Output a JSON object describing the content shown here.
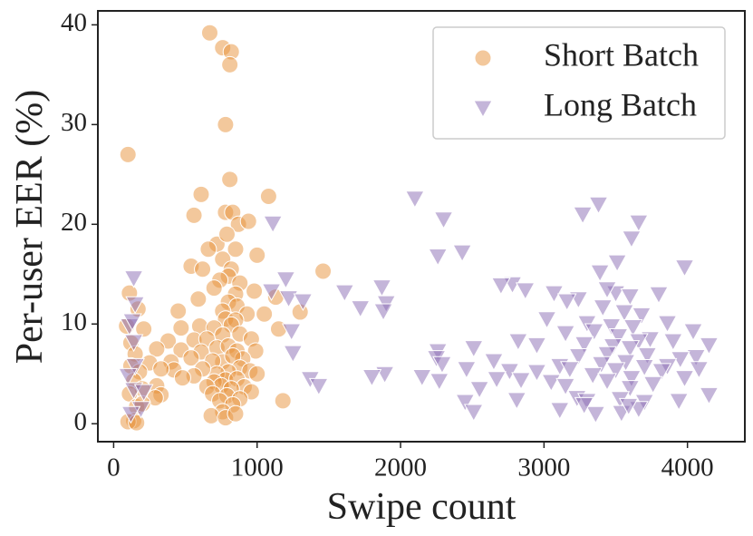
{
  "chart_data": {
    "type": "scatter",
    "x_label": "Swipe count",
    "y_label": "Per-user EER (%)",
    "xlim": [
      -110,
      4400
    ],
    "ylim": [
      -1.8,
      41.4
    ],
    "xticks": [
      0,
      1000,
      2000,
      3000,
      4000
    ],
    "yticks": [
      0,
      10,
      20,
      30,
      40
    ],
    "grid": false,
    "legend": "upper right",
    "series": [
      {
        "name": "Short Batch",
        "color": "#e8923a",
        "marker": "circle",
        "x": [
          100,
          670,
          760,
          820,
          810,
          780,
          810,
          610,
          1080,
          560,
          780,
          830,
          870,
          940,
          720,
          790,
          850,
          660,
          1000,
          760,
          820,
          540,
          620,
          1460,
          800,
          880,
          740,
          590,
          700,
          850,
          980,
          1130,
          110,
          800,
          860,
          760,
          1050,
          1300,
          450,
          170,
          930,
          780,
          850,
          600,
          700,
          820,
          1150,
          470,
          90,
          210,
          760,
          880,
          560,
          650,
          960,
          380,
          120,
          990,
          720,
          800,
          860,
          470,
          610,
          300,
          150,
          900,
          760,
          830,
          540,
          690,
          400,
          250,
          120,
          880,
          800,
          720,
          950,
          620,
          420,
          330,
          180,
          1000,
          780,
          860,
          700,
          560,
          480,
          140,
          910,
          750,
          820,
          650,
          300,
          200,
          960,
          690,
          790,
          330,
          110,
          880,
          740,
          290,
          1180,
          830,
          160,
          760,
          680,
          780,
          850,
          140,
          100,
          160,
          200
        ],
        "values": [
          27,
          39.2,
          37.7,
          37.3,
          36,
          30,
          24.5,
          23,
          22.8,
          20.9,
          21.2,
          21.2,
          20,
          20.3,
          18,
          19,
          17.5,
          17.5,
          16.9,
          16.5,
          15.5,
          15.8,
          15.5,
          15.3,
          14.8,
          14.1,
          14.4,
          12.5,
          13.6,
          13,
          13.3,
          12.7,
          13.1,
          12.2,
          11.8,
          11.3,
          11,
          11.2,
          11.3,
          11.5,
          11,
          10.5,
          10.4,
          9.8,
          9.6,
          9.9,
          9.5,
          9.6,
          9.8,
          9.5,
          8.9,
          9,
          8.4,
          8.5,
          8.5,
          8.3,
          8.1,
          7.3,
          7.6,
          7.8,
          7.3,
          7.4,
          7.2,
          7.5,
          7,
          6.5,
          6.2,
          6.8,
          6.6,
          6.3,
          6.2,
          6.1,
          5.8,
          5.6,
          5.2,
          5,
          5.3,
          5.5,
          5.4,
          5.5,
          5.2,
          5,
          4.4,
          4.5,
          4.2,
          4.8,
          4.6,
          4.3,
          3.7,
          3.8,
          3.5,
          3.7,
          3.8,
          3.5,
          3.2,
          3,
          2.8,
          2.9,
          3,
          2.5,
          2.3,
          2.6,
          2.3,
          1.9,
          1.7,
          1.2,
          0.8,
          0.6,
          1,
          0.3,
          0.2,
          0.1,
          2
        ]
      },
      {
        "name": "Long Batch",
        "color": "#8a6cb4",
        "marker": "triangle_down",
        "x": [
          2100,
          3380,
          3270,
          2300,
          1110,
          3660,
          3610,
          2430,
          2260,
          3510,
          3390,
          3980,
          1200,
          140,
          1870,
          2780,
          1610,
          2870,
          3500,
          1100,
          1220,
          3070,
          3240,
          3440,
          3800,
          1900,
          2700,
          3160,
          3600,
          150,
          1320,
          3410,
          3560,
          3680,
          1880,
          1720,
          3300,
          3020,
          3860,
          3470,
          110,
          130,
          1240,
          3620,
          4040,
          3150,
          3350,
          3520,
          2820,
          3900,
          3740,
          3660,
          140,
          3280,
          3480,
          3600,
          2950,
          1250,
          2260,
          2510,
          2250,
          3440,
          3240,
          3720,
          4150,
          4060,
          3950,
          2650,
          2290,
          3110,
          3400,
          3570,
          3700,
          3860,
          150,
          2460,
          2760,
          2950,
          3180,
          3500,
          3820,
          4080,
          1890,
          1800,
          2150,
          2840,
          3340,
          3610,
          3980,
          100,
          1370,
          2270,
          2670,
          3050,
          3440,
          3760,
          1430,
          2550,
          3150,
          3600,
          4150,
          140,
          210,
          3230,
          2810,
          2450,
          3300,
          3530,
          3700,
          3940,
          2510,
          3110,
          3360,
          3540,
          3660,
          190,
          120,
          3280,
          3590
        ],
        "values": [
          22.6,
          22,
          21,
          20.5,
          20.1,
          20.2,
          18.6,
          17.2,
          16.8,
          16.2,
          15.2,
          15.7,
          14.5,
          14.6,
          13.7,
          14,
          13.2,
          13.4,
          13.1,
          13.3,
          12.6,
          13.1,
          12.5,
          13.5,
          13,
          12.1,
          13.9,
          12.3,
          12.8,
          12,
          12.3,
          11.7,
          11.2,
          10.9,
          11.3,
          11.6,
          10.1,
          10.5,
          10.1,
          9.8,
          9.8,
          10.3,
          9.3,
          9.7,
          9.3,
          9.1,
          9.3,
          8.8,
          8.3,
          8.3,
          8.5,
          8.3,
          8.2,
          8,
          7.8,
          7.6,
          7.9,
          7.1,
          7.3,
          7.6,
          6.6,
          7,
          6.8,
          6.9,
          7.9,
          6.7,
          6.5,
          6.3,
          6,
          5.8,
          6,
          6.2,
          5.7,
          5.8,
          5.8,
          5.5,
          5.3,
          5.2,
          5.5,
          5.4,
          5.3,
          5.5,
          5,
          4.7,
          4.7,
          4.4,
          4.9,
          4.6,
          4.6,
          4.8,
          4.5,
          4.3,
          4.5,
          4.2,
          4.3,
          4,
          3.8,
          3.5,
          3.8,
          3.6,
          2.9,
          3.4,
          3.2,
          2.6,
          2.4,
          2.2,
          2.3,
          2.5,
          2.2,
          2.3,
          1.2,
          1.4,
          1,
          1.1,
          1.5,
          1.5,
          1,
          1.9,
          1.8
        ]
      }
    ]
  }
}
